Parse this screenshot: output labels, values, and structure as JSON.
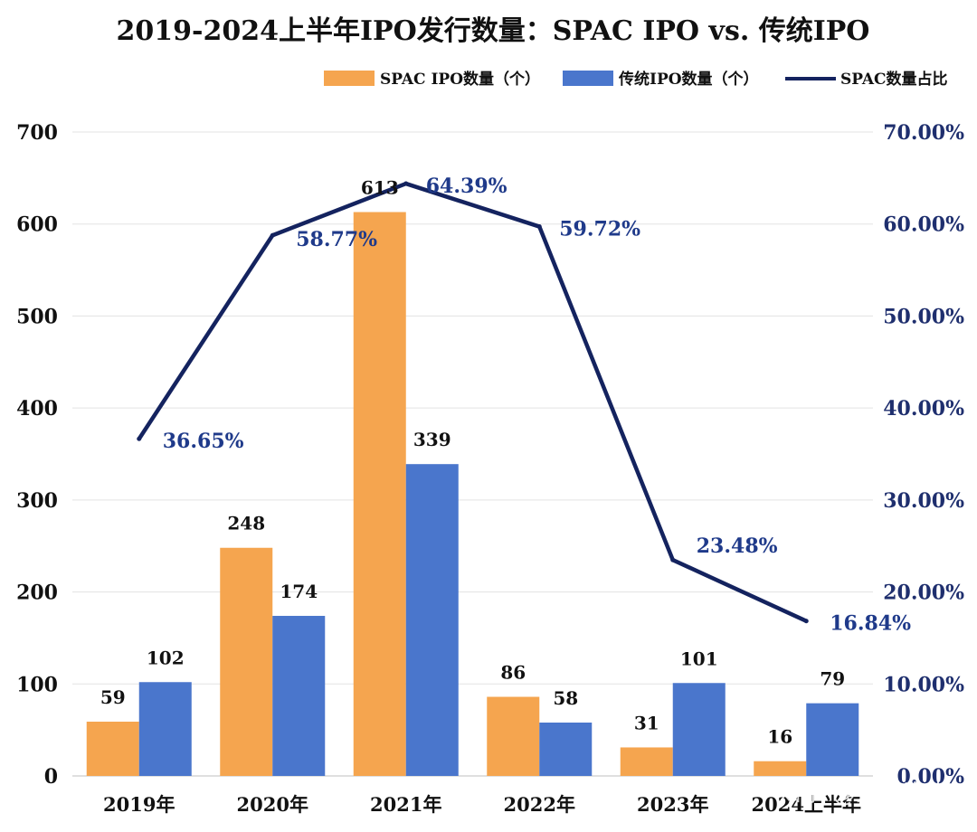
{
  "chart_data": {
    "type": "bar",
    "title": "2019-2024上半年IPO发行数量：SPAC IPO vs. 传统IPO",
    "categories": [
      "2019年",
      "2020年",
      "2021年",
      "2022年",
      "2023年",
      "2024上半年"
    ],
    "series": [
      {
        "name": "SPAC IPO数量（个）",
        "type": "bar",
        "axis": "left",
        "color": "#f5a54f",
        "values": [
          59,
          248,
          613,
          86,
          31,
          16
        ]
      },
      {
        "name": "传统IPO数量（个）",
        "type": "bar",
        "axis": "left",
        "color": "#4a76cc",
        "values": [
          102,
          174,
          339,
          58,
          101,
          79
        ]
      },
      {
        "name": "SPAC数量占比",
        "type": "line",
        "axis": "right",
        "color": "#14235f",
        "values": [
          36.65,
          58.77,
          64.39,
          59.72,
          23.48,
          16.84
        ],
        "labels": [
          "36.65%",
          "58.77%",
          "64.39%",
          "59.72%",
          "23.48%",
          "16.84%"
        ]
      }
    ],
    "ylim": [
      0,
      700
    ],
    "yticks": [
      "0",
      "100",
      "200",
      "300",
      "400",
      "500",
      "600",
      "700"
    ],
    "y2lim": [
      0,
      70
    ],
    "y2ticks": [
      "0.00%",
      "10.00%",
      "20.00%",
      "30.00%",
      "40.00%",
      "50.00%",
      "60.00%",
      "70.00%"
    ],
    "grid": true,
    "legend_position": "top-right",
    "watermark": "知乎 @京都资本"
  }
}
